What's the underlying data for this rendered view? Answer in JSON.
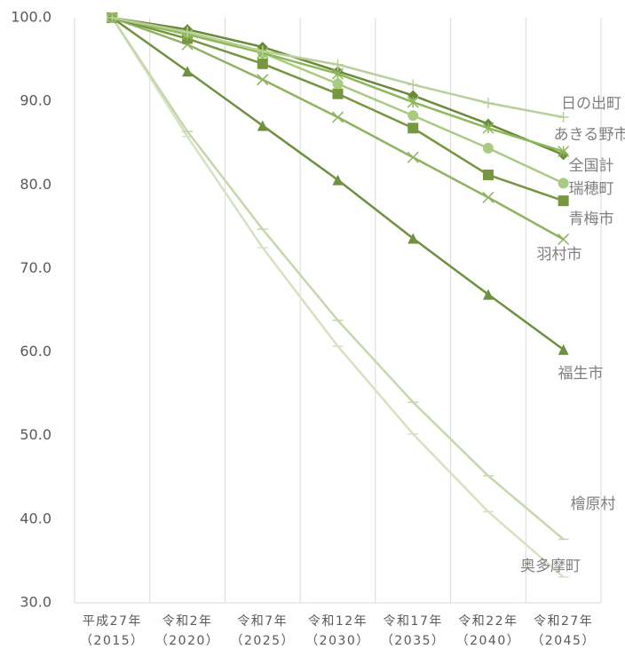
{
  "chart_data": {
    "type": "line",
    "categories": [
      "平成27年",
      "令和2年",
      "令和7年",
      "令和12年",
      "令和17年",
      "令和22年",
      "令和27年"
    ],
    "category_years": [
      "（2015）",
      "（2020）",
      "（2025）",
      "（2030）",
      "（2035）",
      "（2040）",
      "（2045）"
    ],
    "ylim": [
      30,
      100
    ],
    "yticks": [
      {
        "value": 30,
        "label": "30.0"
      },
      {
        "value": 40,
        "label": "40.0"
      },
      {
        "value": 50,
        "label": "50.0"
      },
      {
        "value": 60,
        "label": "60.0"
      },
      {
        "value": 70,
        "label": "70.0"
      },
      {
        "value": 80,
        "label": "80.0"
      },
      {
        "value": 90,
        "label": "90.0"
      },
      {
        "value": 100,
        "label": "100.0"
      }
    ],
    "grid": "vertical",
    "series": [
      {
        "name": "日の出町",
        "color": "#b9cf9a",
        "marker": "plus",
        "values": [
          100,
          98.3,
          96.0,
          94.4,
          92.0,
          89.8,
          88.1
        ]
      },
      {
        "name": "あきる野市",
        "color": "#8db85a",
        "marker": "asterisk",
        "values": [
          100,
          98.0,
          95.8,
          93.3,
          89.9,
          86.8,
          84.0
        ]
      },
      {
        "name": "全国計",
        "color": "#6a8a3a",
        "marker": "diamond",
        "values": [
          100,
          98.6,
          96.5,
          93.6,
          90.7,
          87.3,
          83.6
        ]
      },
      {
        "name": "瑞穂町",
        "color": "#a8cb80",
        "marker": "circle",
        "values": [
          100,
          98.3,
          95.8,
          92.1,
          88.3,
          84.4,
          80.2
        ]
      },
      {
        "name": "青梅市",
        "color": "#76963f",
        "marker": "square",
        "values": [
          100,
          97.5,
          94.5,
          90.9,
          86.8,
          81.2,
          78.1
        ]
      },
      {
        "name": "羽村市",
        "color": "#8eb462",
        "marker": "x",
        "values": [
          100,
          96.8,
          92.6,
          88.1,
          83.3,
          78.5,
          73.5
        ]
      },
      {
        "name": "福生市",
        "color": "#6e9140",
        "marker": "triangle",
        "values": [
          100,
          93.6,
          87.1,
          80.6,
          73.6,
          66.9,
          60.3
        ]
      },
      {
        "name": "檜原村",
        "color": "#c6d7ac",
        "marker": "dash",
        "values": [
          100,
          86.4,
          74.7,
          63.8,
          54.0,
          45.2,
          37.6
        ]
      },
      {
        "name": "奥多摩町",
        "color": "#d5e2c2",
        "marker": "dash",
        "values": [
          100,
          85.8,
          72.5,
          60.7,
          50.2,
          40.9,
          33.1
        ]
      }
    ]
  }
}
